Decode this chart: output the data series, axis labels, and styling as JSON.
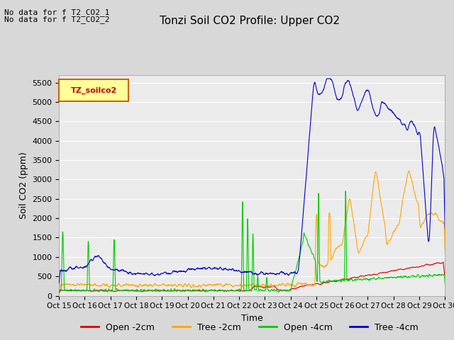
{
  "title": "Tonzi Soil CO2 Profile: Upper CO2",
  "xlabel": "Time",
  "ylabel": "Soil CO2 (ppm)",
  "annotation_line1": "No data for f T2_CO2_1",
  "annotation_line2": "No data for f T2_CO2_2",
  "legend_box_label": "TZ_soilco2",
  "ylim": [
    0,
    5700
  ],
  "yticks": [
    0,
    500,
    1000,
    1500,
    2000,
    2500,
    3000,
    3500,
    4000,
    4500,
    5000,
    5500
  ],
  "xtick_labels": [
    "Oct 15",
    "Oct 16",
    "Oct 17",
    "Oct 18",
    "Oct 19",
    "Oct 20",
    "Oct 21",
    "Oct 22",
    "Oct 23",
    "Oct 24",
    "Oct 25",
    "Oct 26",
    "Oct 27",
    "Oct 28",
    "Oct 29",
    "Oct 30"
  ],
  "series_colors": {
    "open_2cm": "#dd0000",
    "tree_2cm": "#ffa500",
    "open_4cm": "#00cc00",
    "tree_4cm": "#0000cc"
  },
  "legend_labels": [
    "Open -2cm",
    "Tree -2cm",
    "Open -4cm",
    "Tree -4cm"
  ],
  "fig_bg_color": "#d8d8d8",
  "plot_bg_color": "#ebebeb",
  "grid_color": "#ffffff",
  "title_fontsize": 11,
  "axis_fontsize": 9,
  "tick_fontsize": 8
}
